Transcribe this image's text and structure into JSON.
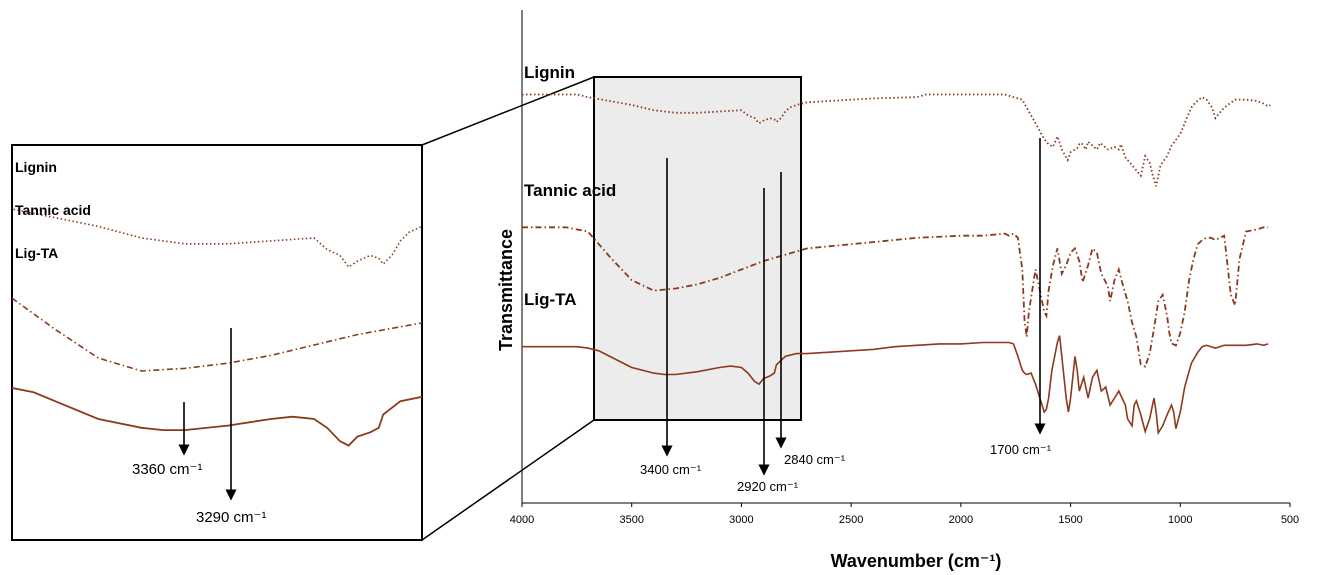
{
  "chart_data": {
    "type": "line",
    "xlabel": "Wavenumber (cm⁻¹)",
    "ylabel": "Transmittance",
    "xlim": [
      4000,
      500
    ],
    "x_reversed": true,
    "xticks": [
      4000,
      3500,
      3000,
      2500,
      2000,
      1500,
      1000,
      500
    ],
    "y_ticks_shown": false,
    "curve_color": "#8B3A1E",
    "inset_background": "#ececec",
    "series": [
      {
        "name": "Lignin",
        "line_style": "dotted",
        "x": [
          4000,
          3750,
          3700,
          3600,
          3500,
          3400,
          3300,
          3200,
          3100,
          3000,
          2970,
          2940,
          2920,
          2900,
          2870,
          2850,
          2840,
          2820,
          2800,
          2780,
          2750,
          2700,
          2600,
          2400,
          2200,
          2160,
          2000,
          1800,
          1720,
          1700,
          1660,
          1620,
          1600,
          1580,
          1560,
          1540,
          1513,
          1500,
          1470,
          1460,
          1450,
          1430,
          1420,
          1380,
          1365,
          1330,
          1300,
          1280,
          1270,
          1250,
          1220,
          1180,
          1160,
          1140,
          1125,
          1110,
          1090,
          1060,
          1040,
          1030,
          1000,
          980,
          950,
          930,
          900,
          880,
          855,
          840,
          830,
          800,
          750,
          700,
          650,
          620,
          600,
          590
        ],
        "y": [
          92,
          92,
          90,
          87,
          84,
          80,
          78,
          78,
          79,
          80,
          76,
          74,
          70,
          72,
          74,
          73,
          71,
          74,
          79,
          82,
          84,
          86,
          87,
          89,
          90,
          92,
          92,
          92,
          88,
          82,
          70,
          58,
          54,
          52,
          60,
          50,
          42,
          48,
          51,
          54,
          55,
          50,
          56,
          50,
          55,
          50,
          52,
          50,
          54,
          44,
          38,
          30,
          45,
          40,
          30,
          22,
          38,
          45,
          53,
          55,
          62,
          70,
          82,
          86,
          90,
          88,
          82,
          74,
          76,
          82,
          88,
          88,
          87,
          85,
          83,
          84
        ]
      },
      {
        "name": "Tannic acid",
        "line_style": "dash-dot",
        "x": [
          4000,
          3800,
          3700,
          3600,
          3500,
          3400,
          3300,
          3200,
          3100,
          3000,
          2900,
          2800,
          2700,
          2600,
          2400,
          2200,
          2000,
          1900,
          1800,
          1780,
          1760,
          1740,
          1720,
          1710,
          1700,
          1690,
          1660,
          1640,
          1620,
          1610,
          1600,
          1580,
          1560,
          1540,
          1520,
          1500,
          1480,
          1460,
          1445,
          1420,
          1400,
          1380,
          1360,
          1330,
          1320,
          1300,
          1280,
          1260,
          1240,
          1220,
          1200,
          1180,
          1160,
          1140,
          1120,
          1100,
          1080,
          1060,
          1050,
          1040,
          1020,
          1000,
          980,
          960,
          940,
          920,
          900,
          880,
          860,
          840,
          800,
          770,
          750,
          730,
          700,
          650,
          620,
          600
        ],
        "y": [
          70,
          70,
          68,
          56,
          45,
          40,
          41,
          43,
          46,
          50,
          54,
          57,
          60,
          61,
          63,
          65,
          66,
          66,
          67,
          66,
          67,
          65,
          50,
          26,
          18,
          30,
          50,
          40,
          30,
          28,
          40,
          52,
          60,
          48,
          52,
          58,
          60,
          54,
          44,
          52,
          60,
          58,
          48,
          42,
          35,
          45,
          50,
          42,
          35,
          25,
          18,
          5,
          4,
          10,
          22,
          35,
          38,
          28,
          20,
          15,
          14,
          20,
          30,
          45,
          55,
          62,
          64,
          65,
          65,
          64,
          66,
          38,
          33,
          55,
          68,
          69,
          70,
          70
        ]
      },
      {
        "name": "Lig-TA",
        "line_style": "solid",
        "x": [
          4000,
          3750,
          3700,
          3650,
          3600,
          3500,
          3400,
          3350,
          3300,
          3200,
          3100,
          3050,
          3000,
          2970,
          2940,
          2920,
          2900,
          2870,
          2850,
          2840,
          2800,
          2750,
          2700,
          2600,
          2500,
          2400,
          2300,
          2200,
          2100,
          2000,
          1900,
          1800,
          1780,
          1760,
          1740,
          1720,
          1710,
          1700,
          1680,
          1660,
          1640,
          1620,
          1610,
          1600,
          1585,
          1560,
          1550,
          1540,
          1520,
          1510,
          1500,
          1480,
          1470,
          1460,
          1440,
          1420,
          1400,
          1380,
          1360,
          1340,
          1320,
          1300,
          1280,
          1250,
          1240,
          1220,
          1210,
          1200,
          1180,
          1160,
          1140,
          1120,
          1110,
          1100,
          1080,
          1060,
          1040,
          1030,
          1020,
          1000,
          980,
          950,
          920,
          900,
          880,
          860,
          840,
          820,
          800,
          780,
          750,
          700,
          650,
          620,
          600
        ],
        "y": [
          47,
          47,
          46,
          44,
          40,
          32,
          28,
          27,
          27,
          29,
          32,
          33,
          32,
          28,
          22,
          20,
          24,
          26,
          28,
          34,
          40,
          42,
          42,
          43,
          44,
          45,
          47,
          48,
          49,
          49,
          50,
          50,
          50,
          49,
          40,
          30,
          28,
          27,
          28,
          20,
          10,
          0,
          2,
          10,
          30,
          50,
          55,
          40,
          10,
          0,
          10,
          40,
          30,
          15,
          25,
          10,
          25,
          30,
          15,
          18,
          5,
          10,
          15,
          5,
          -5,
          -10,
          5,
          8,
          -2,
          -14,
          -5,
          10,
          0,
          -15,
          -10,
          -2,
          5,
          0,
          -12,
          0,
          18,
          35,
          43,
          47,
          48,
          47,
          46,
          47,
          48,
          48,
          48,
          48,
          49,
          48,
          49
        ]
      }
    ],
    "inset": {
      "xlim": [
        3700,
        2750
      ],
      "series_labels": [
        "Lignin",
        "Tannic acid",
        "Lig-TA"
      ]
    }
  },
  "labels": {
    "lignin": "Lignin",
    "tannic": "Tannic acid",
    "ligta": "Lig-TA"
  },
  "annotations": {
    "a3400": "3400 cm⁻¹",
    "a2920": "2920 cm⁻¹",
    "a2840": "2840 cm⁻¹",
    "a1700": "1700 cm⁻¹",
    "a3360": "3360 cm⁻¹",
    "a3290": "3290 cm⁻¹"
  }
}
